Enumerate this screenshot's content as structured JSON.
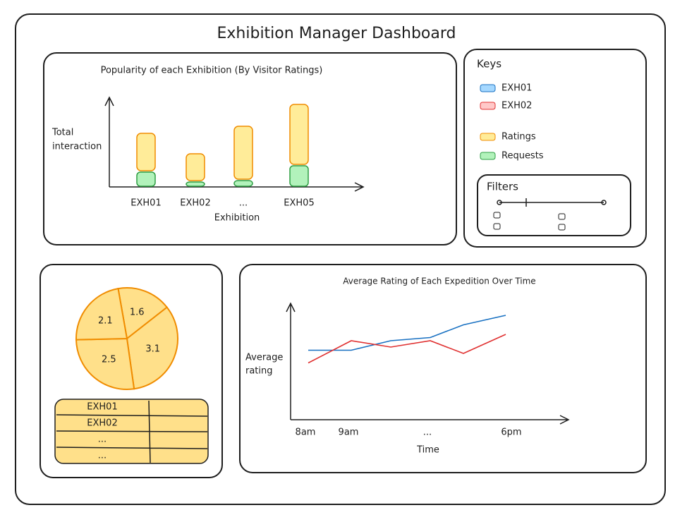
{
  "title": "Exhibition Manager Dashboard",
  "bar_chart": {
    "type": "bar",
    "title": "Popularity of each Exhibition (By Visitor Ratings)",
    "y_label": [
      "Total",
      "interaction"
    ],
    "x_label": "Exhibition",
    "categories": [
      "EXH01",
      "EXH02",
      "...",
      "EXH05"
    ],
    "series": [
      {
        "name": "Ratings",
        "color": "#ffec99",
        "stroke": "#f08c00",
        "values": [
          53,
          38,
          75,
          85
        ]
      },
      {
        "name": "Requests",
        "color": "#b2f2bb",
        "stroke": "#2f9e44",
        "values": [
          20,
          6,
          8,
          29
        ]
      }
    ]
  },
  "keys_title": "Keys",
  "filters_title": "Filters",
  "pie_chart": {
    "type": "pie",
    "values": [
      1.6,
      3.1,
      2.5,
      2.1
    ],
    "color": "#ffe08a",
    "stroke": "#f08c00"
  },
  "table": {
    "rows": [
      "EXH01",
      "EXH02",
      "...",
      "..."
    ]
  },
  "line_chart": {
    "type": "line",
    "title": "Average Rating of Each Expedition Over Time",
    "y_label": [
      "Average",
      "rating"
    ],
    "x_label": "Time",
    "x_labels": [
      "8am",
      "9am",
      "...",
      "6pm"
    ],
    "series": [
      {
        "name": "EXH01",
        "color": "#1971c2",
        "values": [
          2.3,
          2.3,
          2.6,
          2.7,
          3.1,
          3.4
        ]
      },
      {
        "name": "EXH02",
        "color": "#e03131",
        "values": [
          1.9,
          2.6,
          2.4,
          2.6,
          2.2,
          2.8
        ]
      }
    ]
  }
}
